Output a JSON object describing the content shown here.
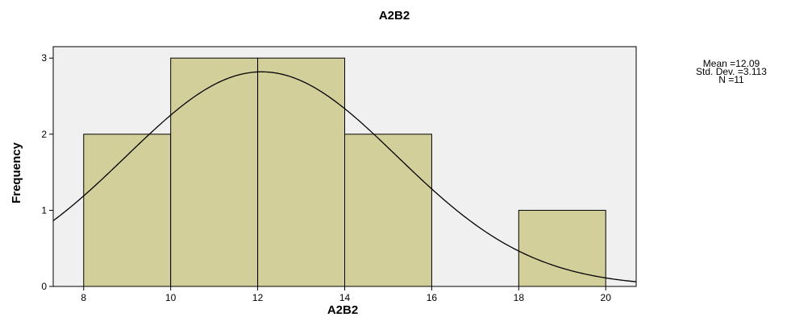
{
  "chart_data": {
    "type": "bar",
    "subtype": "histogram",
    "title": "A2B2",
    "xlabel": "A2B2",
    "ylabel": "Frequency",
    "bins": [
      {
        "from": 8,
        "to": 10,
        "count": 2
      },
      {
        "from": 10,
        "to": 12,
        "count": 3
      },
      {
        "from": 12,
        "to": 14,
        "count": 3
      },
      {
        "from": 14,
        "to": 16,
        "count": 2
      },
      {
        "from": 16,
        "to": 18,
        "count": 0
      },
      {
        "from": 18,
        "to": 20,
        "count": 1
      }
    ],
    "x_ticks": [
      8,
      10,
      12,
      14,
      16,
      18,
      20
    ],
    "y_ticks": [
      0,
      1,
      2,
      3
    ],
    "xlim": [
      7.3,
      20.7
    ],
    "ylim": [
      0,
      3.15
    ],
    "normal_curve": {
      "mean": 12.09,
      "std_dev": 3.113,
      "n": 11,
      "bin_width": 2
    },
    "stats_labels": [
      "Mean =12.09",
      "Std. Dev. =3.113",
      "N =11"
    ],
    "colors": {
      "bar_fill": "#d3cf9a",
      "plot_background": "#f0f0f0",
      "bar_stroke": "#000000",
      "curve": "#000000"
    },
    "grid": false,
    "legend": "right"
  }
}
